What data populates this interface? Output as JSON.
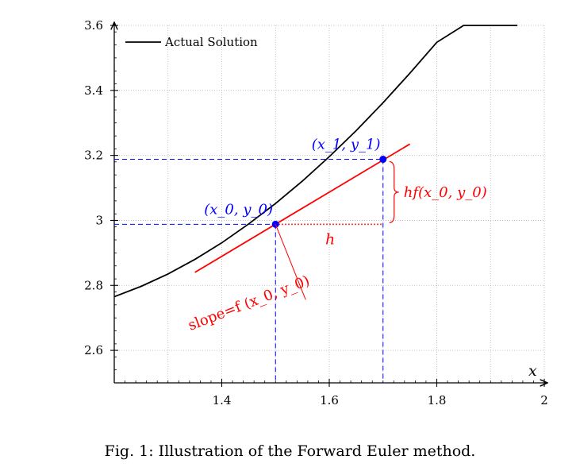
{
  "chart_data": {
    "type": "line",
    "title": "",
    "xlabel": "x",
    "ylabel": "",
    "xlim": [
      1.2,
      2.0
    ],
    "ylim": [
      2.5,
      3.6
    ],
    "x_ticks": [
      1.4,
      1.6,
      1.8,
      2.0
    ],
    "x_tick_labels": [
      "1.4",
      "1.6",
      "1.8",
      "2"
    ],
    "y_ticks": [
      2.6,
      2.8,
      3.0,
      3.2,
      3.4,
      3.6
    ],
    "y_tick_labels": [
      "2.6",
      "2.8",
      "3",
      "3.2",
      "3.4",
      "3.6"
    ],
    "grid": true,
    "legend": {
      "position": "top-left",
      "entries": [
        "Actual Solution"
      ]
    },
    "series": [
      {
        "name": "Actual Solution",
        "color": "#000000",
        "x": [
          1.2,
          1.25,
          1.3,
          1.35,
          1.4,
          1.45,
          1.5,
          1.55,
          1.6,
          1.65,
          1.7,
          1.75,
          1.8,
          1.85,
          1.9,
          1.95
        ],
        "y": [
          2.765,
          2.797,
          2.835,
          2.88,
          2.931,
          2.989,
          3.052,
          3.121,
          3.196,
          3.276,
          3.362,
          3.453,
          3.548,
          3.6,
          3.6,
          3.6
        ]
      }
    ],
    "tangent_line": {
      "color": "#ff0000",
      "x": [
        1.35,
        1.75
      ],
      "y": [
        2.84,
        3.235
      ]
    },
    "points": [
      {
        "label": "(x_0, y_0)",
        "x": 1.5,
        "y": 2.988,
        "color": "#0000ff"
      },
      {
        "label": "(x_1, y_1)",
        "x": 1.7,
        "y": 3.188,
        "color": "#0000ff"
      }
    ],
    "annotations": {
      "h_label": "h",
      "hf_label": "hf(x_0, y_0)",
      "slope_label": "slope=f (x_0, y_0)",
      "x0y0_label": "(x_0, y_0)",
      "x1y1_label": "(x_1, y_1)"
    }
  },
  "caption": "Fig. 1: Illustration of the Forward Euler method."
}
